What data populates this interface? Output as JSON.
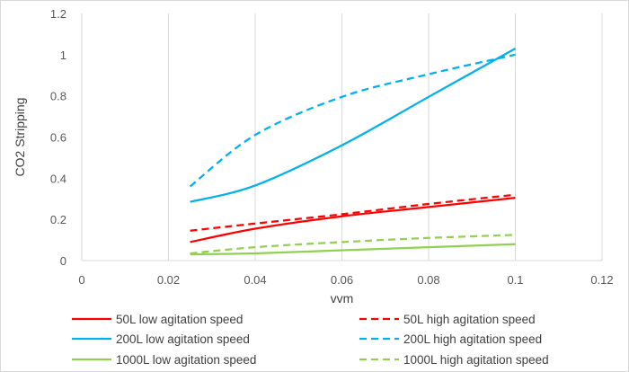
{
  "chart_data": {
    "type": "line",
    "title": "",
    "xlabel": "vvm",
    "ylabel": "CO2 Stripping",
    "xlim": [
      0,
      0.12
    ],
    "ylim": [
      0,
      1.2
    ],
    "x_ticks": [
      0,
      0.02,
      0.04,
      0.06,
      0.08,
      0.1,
      0.12
    ],
    "x_tick_labels": [
      "0",
      "0.02",
      "0.04",
      "0.06",
      "0.08",
      "0.1",
      "0.12"
    ],
    "y_ticks": [
      0,
      0.2,
      0.4,
      0.6,
      0.8,
      1.0,
      1.2
    ],
    "y_tick_labels": [
      "0",
      "0.2",
      "0.4",
      "0.6",
      "0.8",
      "1",
      "1.2"
    ],
    "grid": "vertical",
    "legend_position": "bottom",
    "series": [
      {
        "name": "50L low agitation speed",
        "color": "#ff0000",
        "dash": "solid",
        "points": [
          [
            0.025,
            0.09
          ],
          [
            0.04,
            0.155
          ],
          [
            0.06,
            0.215
          ],
          [
            0.08,
            0.26
          ],
          [
            0.1,
            0.305
          ]
        ]
      },
      {
        "name": "50L high agitation speed",
        "color": "#ff0000",
        "dash": "dashed",
        "points": [
          [
            0.025,
            0.145
          ],
          [
            0.04,
            0.18
          ],
          [
            0.06,
            0.225
          ],
          [
            0.08,
            0.275
          ],
          [
            0.1,
            0.32
          ]
        ]
      },
      {
        "name": "200L low agitation speed",
        "color": "#00b0f0",
        "dash": "solid",
        "points": [
          [
            0.025,
            0.285
          ],
          [
            0.04,
            0.365
          ],
          [
            0.06,
            0.56
          ],
          [
            0.08,
            0.795
          ],
          [
            0.1,
            1.03
          ]
        ]
      },
      {
        "name": "200L high agitation speed",
        "color": "#00b0f0",
        "dash": "dashed",
        "points": [
          [
            0.025,
            0.36
          ],
          [
            0.04,
            0.61
          ],
          [
            0.06,
            0.795
          ],
          [
            0.08,
            0.905
          ],
          [
            0.1,
            1.0
          ]
        ]
      },
      {
        "name": "1000L low agitation speed",
        "color": "#92d050",
        "dash": "solid",
        "points": [
          [
            0.025,
            0.03
          ],
          [
            0.04,
            0.035
          ],
          [
            0.06,
            0.05
          ],
          [
            0.08,
            0.065
          ],
          [
            0.1,
            0.08
          ]
        ]
      },
      {
        "name": "1000L high agitation speed",
        "color": "#92d050",
        "dash": "dashed",
        "points": [
          [
            0.025,
            0.035
          ],
          [
            0.04,
            0.065
          ],
          [
            0.06,
            0.09
          ],
          [
            0.08,
            0.11
          ],
          [
            0.1,
            0.125
          ]
        ]
      }
    ]
  }
}
